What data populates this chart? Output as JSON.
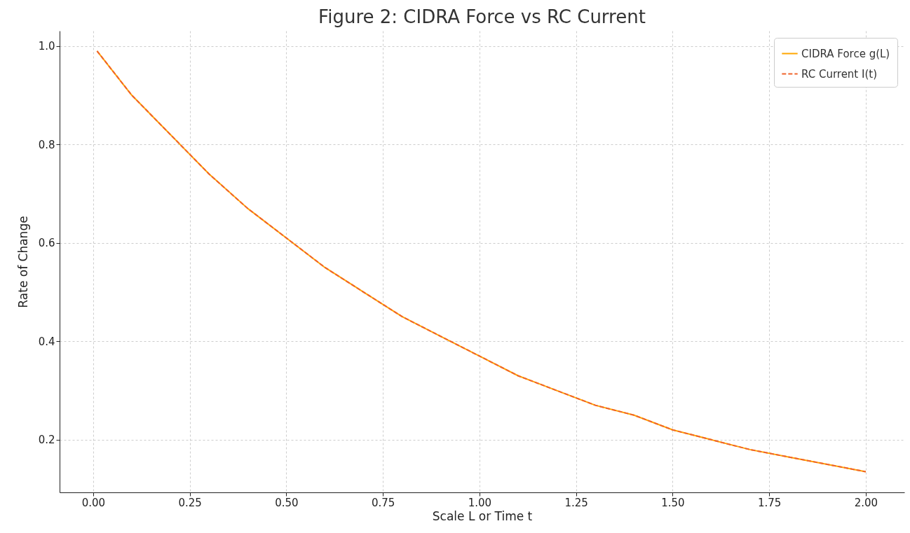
{
  "chart_data": {
    "type": "line",
    "title": "Figure 2: CIDRA Force vs RC Current",
    "xlabel": "Scale L or Time t",
    "ylabel": "Rate of Change",
    "x": [
      0.01,
      0.1,
      0.2,
      0.3,
      0.4,
      0.5,
      0.6,
      0.7,
      0.8,
      0.9,
      1.0,
      1.1,
      1.2,
      1.3,
      1.4,
      1.5,
      1.6,
      1.7,
      1.8,
      1.9,
      2.0
    ],
    "series": [
      {
        "name": "CIDRA Force g(L)",
        "color": "#ffa600",
        "line_style": "solid",
        "values": [
          0.99,
          0.9,
          0.82,
          0.74,
          0.67,
          0.61,
          0.55,
          0.5,
          0.45,
          0.41,
          0.37,
          0.33,
          0.3,
          0.27,
          0.25,
          0.22,
          0.2,
          0.18,
          0.165,
          0.15,
          0.135
        ]
      },
      {
        "name": "RC Current I(t)",
        "color": "#f0642c",
        "line_style": "dashed",
        "values": [
          0.99,
          0.9,
          0.82,
          0.74,
          0.67,
          0.61,
          0.55,
          0.5,
          0.45,
          0.41,
          0.37,
          0.33,
          0.3,
          0.27,
          0.25,
          0.22,
          0.2,
          0.18,
          0.165,
          0.15,
          0.135
        ]
      }
    ],
    "xlim": [
      -0.087,
      2.1
    ],
    "xticks": [
      {
        "value": 0,
        "label": "0.00"
      },
      0.25,
      {
        "value": 0.5,
        "label": "0.50"
      },
      0.75,
      {
        "value": 1,
        "label": "1.00"
      },
      1.25,
      {
        "value": 1.5,
        "label": "1.50"
      },
      1.75,
      {
        "value": 2,
        "label": "2.00"
      }
    ],
    "ylim": [
      0.093,
      1.031
    ],
    "yticks": [
      0.2,
      0.4,
      0.6,
      0.8,
      {
        "value": 1,
        "label": "1.0"
      }
    ],
    "grid": true,
    "legend": "top right",
    "marker": "none"
  }
}
